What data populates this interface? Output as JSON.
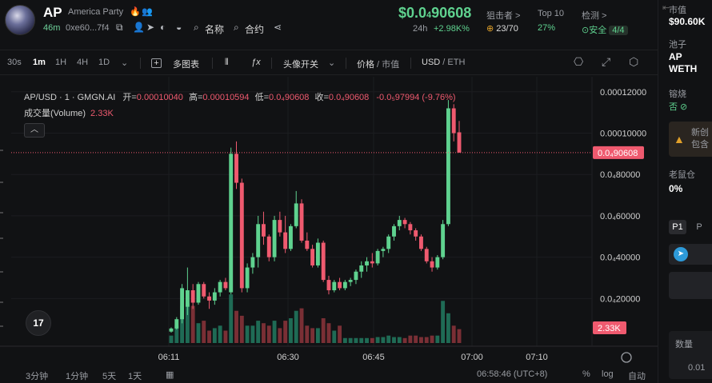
{
  "header": {
    "ticker": "AP",
    "full_name": "America Party",
    "flame_icon": "🔥",
    "people_icon": "👥",
    "age": "46m",
    "address": "0xe60...7f4",
    "name_search_label": "名称",
    "contract_search_label": "合约",
    "price_prefix": "$0.0",
    "price_sub": "4",
    "price_suffix": "90608",
    "change_period": "24h",
    "change_value": "+2.98K%",
    "snipers_label": "狙击者 >",
    "snipers_value": "23/70",
    "top10_label": "Top 10",
    "top10_value": "27%",
    "audit_label": "检测 >",
    "audit_value": "安全",
    "audit_badge": "4/4"
  },
  "toolbar": {
    "intervals": [
      "30s",
      "1m",
      "1H",
      "4H",
      "1D"
    ],
    "active_interval": "1m",
    "multi_chart": "多图表",
    "avatar_toggle": "头像开关",
    "price_label": "价格",
    "mcap_label": "市值",
    "usd_label": "USD",
    "eth_label": "ETH"
  },
  "legend": {
    "pair": "AP/USD · 1 · GMGN.AI",
    "open_label": "开=",
    "open": "0.00010040",
    "high_label": "高=",
    "high": "0.00010594",
    "low_label": "低=",
    "low": "0.0₄90608",
    "close_label": "收=",
    "close": "0.0₄90608",
    "change": "-0.0₅97994 (-9.76%)",
    "volume_label": "成交量(Volume)",
    "volume_value": "2.33K",
    "collapse_glyph": "︿"
  },
  "tv_logo": "17",
  "chart_data": {
    "type": "candlestick",
    "x_ticks": [
      "06:11",
      "06:30",
      "06:45",
      "07:00",
      "07:10"
    ],
    "y_ticks": [
      "0.00012000",
      "0.00010000",
      "0.0₄80000",
      "0.0₄60000",
      "0.0₄40000",
      "0.0₄20000"
    ],
    "ylim": [
      3.5e-06,
      0.0001265
    ],
    "current_price_label": "0.0₄90608",
    "current_price": 9.06e-05,
    "current_volume_label": "2.33K",
    "candles": [
      {
        "o": 4e-06,
        "h": 6e-06,
        "l": 3.5e-06,
        "c": 5.5e-06,
        "v": 0.15
      },
      {
        "o": 5.5e-06,
        "h": 1.1e-05,
        "l": 5e-06,
        "c": 1e-05,
        "v": 0.35
      },
      {
        "o": 1e-05,
        "h": 2.7e-05,
        "l": 8e-06,
        "c": 2.5e-05,
        "v": 0.75
      },
      {
        "o": 1.6e-05,
        "h": 3.5e-05,
        "l": 1.2e-05,
        "c": 2.4e-05,
        "v": 0.8
      },
      {
        "o": 2.4e-05,
        "h": 2.7e-05,
        "l": 1.5e-05,
        "c": 1.8e-05,
        "v": 0.75
      },
      {
        "o": 1.8e-05,
        "h": 2.8e-05,
        "l": 1.7e-05,
        "c": 2.7e-05,
        "v": 0.4
      },
      {
        "o": 2.7e-05,
        "h": 2.8e-05,
        "l": 2e-05,
        "c": 2.1e-05,
        "v": 0.45
      },
      {
        "o": 2.1e-05,
        "h": 2.3e-05,
        "l": 1.5e-05,
        "c": 1.9e-05,
        "v": 0.25
      },
      {
        "o": 1.9e-05,
        "h": 2.5e-05,
        "l": 1.7e-05,
        "c": 2.3e-05,
        "v": 0.3
      },
      {
        "o": 2.3e-05,
        "h": 2.9e-05,
        "l": 2.1e-05,
        "c": 2.8e-05,
        "v": 0.35
      },
      {
        "o": 2.8e-05,
        "h": 3e-05,
        "l": 2.4e-05,
        "c": 2.5e-05,
        "v": 0.25
      },
      {
        "o": 2.3e-05,
        "h": 9.3e-05,
        "l": 2.2e-05,
        "c": 9e-05,
        "v": 0.98
      },
      {
        "o": 9e-05,
        "h": 9.6e-05,
        "l": 7.3e-05,
        "c": 7.6e-05,
        "v": 0.65
      },
      {
        "o": 7.6e-05,
        "h": 7.8e-05,
        "l": 2.3e-05,
        "c": 2.5e-05,
        "v": 0.55
      },
      {
        "o": 2.5e-05,
        "h": 3.7e-05,
        "l": 2.3e-05,
        "c": 3.5e-05,
        "v": 0.35
      },
      {
        "o": 3.5e-05,
        "h": 4.2e-05,
        "l": 3.2e-05,
        "c": 4e-05,
        "v": 0.35
      },
      {
        "o": 4e-05,
        "h": 6e-05,
        "l": 3.5e-05,
        "c": 5.6e-05,
        "v": 0.45
      },
      {
        "o": 5.6e-05,
        "h": 6.2e-05,
        "l": 4.6e-05,
        "c": 5e-05,
        "v": 0.4
      },
      {
        "o": 5e-05,
        "h": 5.1e-05,
        "l": 3.8e-05,
        "c": 4e-05,
        "v": 0.35
      },
      {
        "o": 4e-05,
        "h": 6e-05,
        "l": 3.8e-05,
        "c": 5.8e-05,
        "v": 0.45
      },
      {
        "o": 5.8e-05,
        "h": 6.2e-05,
        "l": 5e-05,
        "c": 5.2e-05,
        "v": 0.3
      },
      {
        "o": 5.2e-05,
        "h": 6e-05,
        "l": 4.2e-05,
        "c": 4.4e-05,
        "v": 0.45
      },
      {
        "o": 4.4e-05,
        "h": 5.6e-05,
        "l": 4.3e-05,
        "c": 5.5e-05,
        "v": 0.5
      },
      {
        "o": 5.5e-05,
        "h": 7.2e-05,
        "l": 5.4e-05,
        "c": 6.6e-05,
        "v": 0.65
      },
      {
        "o": 6.6e-05,
        "h": 6.8e-05,
        "l": 4.7e-05,
        "c": 4.8e-05,
        "v": 0.7
      },
      {
        "o": 4.8e-05,
        "h": 5.2e-05,
        "l": 4.3e-05,
        "c": 4.4e-05,
        "v": 0.35
      },
      {
        "o": 4.4e-05,
        "h": 4.6e-05,
        "l": 3.5e-05,
        "c": 3.6e-05,
        "v": 0.3
      },
      {
        "o": 3.6e-05,
        "h": 4.9e-05,
        "l": 3.5e-05,
        "c": 4.7e-05,
        "v": 0.3
      },
      {
        "o": 4.7e-05,
        "h": 4.8e-05,
        "l": 2.8e-05,
        "c": 2.9e-05,
        "v": 0.5
      },
      {
        "o": 2.9e-05,
        "h": 3.1e-05,
        "l": 2.2e-05,
        "c": 2.4e-05,
        "v": 0.4
      },
      {
        "o": 2.4e-05,
        "h": 2.9e-05,
        "l": 2.3e-05,
        "c": 2.8e-05,
        "v": 0.25
      },
      {
        "o": 2.8e-05,
        "h": 3e-05,
        "l": 2.4e-05,
        "c": 2.5e-05,
        "v": 0.35
      },
      {
        "o": 2.5e-05,
        "h": 2.9e-05,
        "l": 2.4e-05,
        "c": 2.8e-05,
        "v": 0.1
      },
      {
        "o": 2.8e-05,
        "h": 3e-05,
        "l": 2.6e-05,
        "c": 2.9e-05,
        "v": 0.1
      },
      {
        "o": 2.9e-05,
        "h": 3.4e-05,
        "l": 2.7e-05,
        "c": 3.3e-05,
        "v": 0.1
      },
      {
        "o": 3.3e-05,
        "h": 3.8e-05,
        "l": 3e-05,
        "c": 3.6e-05,
        "v": 0.1
      },
      {
        "o": 3.6e-05,
        "h": 4e-05,
        "l": 3.3e-05,
        "c": 3.8e-05,
        "v": 0.1
      },
      {
        "o": 3.8e-05,
        "h": 4.2e-05,
        "l": 3.5e-05,
        "c": 3.7e-05,
        "v": 0.1
      },
      {
        "o": 3.7e-05,
        "h": 4.4e-05,
        "l": 3.6e-05,
        "c": 4.3e-05,
        "v": 0.12
      },
      {
        "o": 4.3e-05,
        "h": 4.5e-05,
        "l": 4e-05,
        "c": 4.4e-05,
        "v": 0.12
      },
      {
        "o": 4.4e-05,
        "h": 5.1e-05,
        "l": 4.2e-05,
        "c": 5e-05,
        "v": 0.15
      },
      {
        "o": 5e-05,
        "h": 5.6e-05,
        "l": 4.8e-05,
        "c": 5.5e-05,
        "v": 0.12
      },
      {
        "o": 5.5e-05,
        "h": 6e-05,
        "l": 5.3e-05,
        "c": 5.8e-05,
        "v": 0.12
      },
      {
        "o": 5.8e-05,
        "h": 5.9e-05,
        "l": 5.4e-05,
        "c": 5.6e-05,
        "v": 0.1
      },
      {
        "o": 5.6e-05,
        "h": 5.7e-05,
        "l": 5.1e-05,
        "c": 5.3e-05,
        "v": 0.15
      },
      {
        "o": 5.3e-05,
        "h": 5.4e-05,
        "l": 4.8e-05,
        "c": 5e-05,
        "v": 0.15
      },
      {
        "o": 5e-05,
        "h": 5.1e-05,
        "l": 4.3e-05,
        "c": 4.4e-05,
        "v": 0.12
      },
      {
        "o": 4.4e-05,
        "h": 4.5e-05,
        "l": 3.7e-05,
        "c": 3.8e-05,
        "v": 0.12
      },
      {
        "o": 3.8e-05,
        "h": 4e-05,
        "l": 3.3e-05,
        "c": 3.5e-05,
        "v": 0.15
      },
      {
        "o": 3.5e-05,
        "h": 4.1e-05,
        "l": 3.4e-05,
        "c": 4e-05,
        "v": 0.15
      },
      {
        "o": 4e-05,
        "h": 5.8e-05,
        "l": 3.9e-05,
        "c": 5.6e-05,
        "v": 0.85
      },
      {
        "o": 5.6e-05,
        "h": 0.000116,
        "l": 5.5e-05,
        "c": 0.000112,
        "v": 0.6
      },
      {
        "o": 0.000112,
        "h": 0.000114,
        "l": 9.6e-05,
        "c": 0.0001,
        "v": 0.35
      },
      {
        "o": 0.0001004,
        "h": 0.0001059,
        "l": 9.06e-05,
        "c": 9.06e-05,
        "v": 0.28
      }
    ]
  },
  "bottom_bar": {
    "left_items": [
      "3分钟",
      "1分钟",
      "5天",
      "1天"
    ],
    "clock": "06:58:46 (UTC+8)",
    "pct": "%",
    "log": "log",
    "auto": "自动"
  },
  "right_panel": {
    "mcap_label": "市值",
    "mcap_value": "$90.60K",
    "pool_label": "池子",
    "pool_token": "AP",
    "pool_pair": "WETH",
    "burn_label": "镕烧",
    "burn_value": "否 ⊘",
    "warn_line1": "新创",
    "warn_line2": "包含",
    "rat_label": "老鼠仓",
    "rat_value": "0%",
    "p1": "P1",
    "p2": "P",
    "qty_label": "数量",
    "qty_value": "0.01"
  },
  "colors": {
    "up": "#5fd28f",
    "down": "#ef5a6f",
    "vol_up": "#1f6b55",
    "vol_down": "#7a2f35"
  }
}
